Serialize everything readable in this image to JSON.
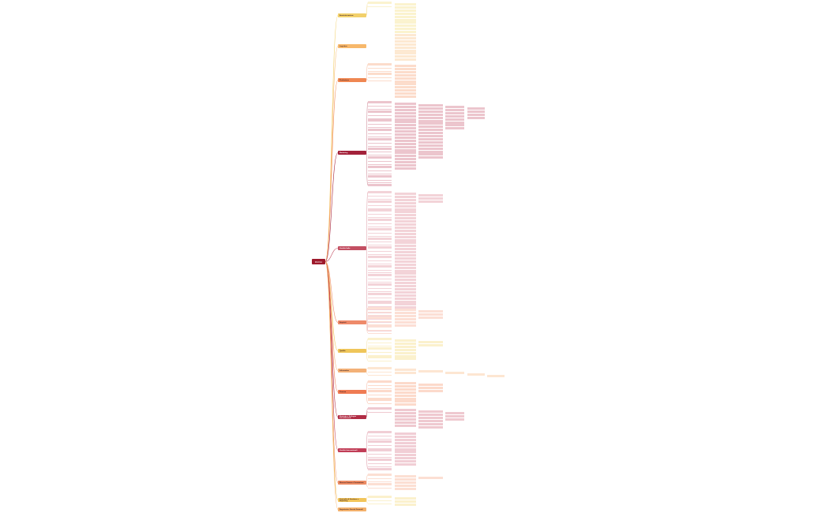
{
  "root": {
    "label": "RUOLI"
  },
  "branches": [
    {
      "id": "b1",
      "label": "Amministrazione",
      "color": "#f2d06b",
      "light": "#fbf3cf"
    },
    {
      "id": "b2",
      "label": "Logistica",
      "color": "#f7b86b",
      "light": "#fde9d2"
    },
    {
      "id": "b3",
      "label": "Produzione",
      "color": "#ef8752",
      "light": "#fcdccb"
    },
    {
      "id": "b4",
      "label": "Marketing",
      "color": "#a3213a",
      "light": "#ecc5cd"
    },
    {
      "id": "b5",
      "label": "Vendite Italia",
      "color": "#c34f62",
      "light": "#f3d3d8"
    },
    {
      "id": "b6",
      "label": "Acquisti",
      "color": "#ee8a6a",
      "light": "#fcdfd5"
    },
    {
      "id": "b7",
      "label": "Qualità",
      "color": "#efc65a",
      "light": "#fbf1cd"
    },
    {
      "id": "b8",
      "label": "Informatica",
      "color": "#f3b178",
      "light": "#fde6d2"
    },
    {
      "id": "b9",
      "label": "Finanza",
      "color": "#ef7b53",
      "light": "#fcdacb"
    },
    {
      "id": "b10",
      "label": "Strategia e Sviluppo Internazionale",
      "color": "#b12d45",
      "light": "#efc9d0"
    },
    {
      "id": "b11",
      "label": "Vendite Internazionali",
      "color": "#c13e57",
      "light": "#f1ced5"
    },
    {
      "id": "b12",
      "label": "Risorse Umane e Formazione",
      "color": "#ec8b63",
      "light": "#fcdfd3"
    },
    {
      "id": "b13",
      "label": "Controllo di Gestione e Reporting",
      "color": "#f2c55a",
      "light": "#fbf1cd"
    },
    {
      "id": "b14",
      "label": "Segreteria e Servizi Generali",
      "color": "#f4b16c",
      "light": "#fde6d2"
    }
  ]
}
